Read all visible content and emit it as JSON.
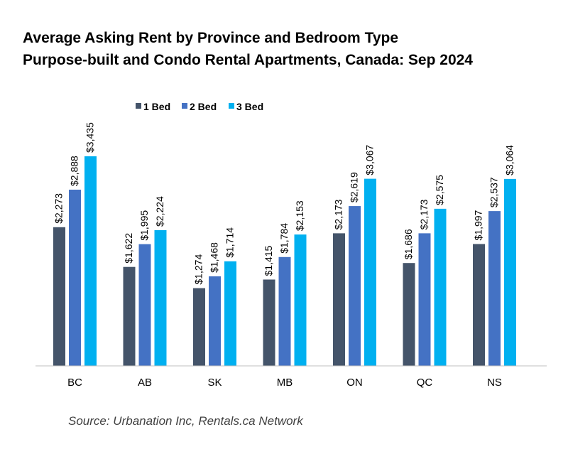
{
  "chart_data": {
    "type": "bar",
    "title": "Average Asking Rent by Province and Bedroom Type",
    "subtitle": "Purpose-built and Condo Rental Apartments, Canada: Sep 2024",
    "source": "Source: Urbanation Inc, Rentals.ca Network",
    "categories": [
      "BC",
      "AB",
      "SK",
      "MB",
      "ON",
      "QC",
      "NS"
    ],
    "series": [
      {
        "name": "1 Bed",
        "color": "#44546a",
        "values": [
          2273,
          1622,
          1274,
          1415,
          2173,
          1686,
          1997
        ]
      },
      {
        "name": "2 Bed",
        "color": "#4472c4",
        "values": [
          2888,
          1995,
          1468,
          1784,
          2619,
          2173,
          2537
        ]
      },
      {
        "name": "3 Bed",
        "color": "#00b0f0",
        "values": [
          3435,
          2224,
          1714,
          2153,
          3067,
          2575,
          3064
        ]
      }
    ],
    "data_labels": [
      [
        "$2,273",
        "$1,622",
        "$1,274",
        "$1,415",
        "$2,173",
        "$1,686",
        "$1,997"
      ],
      [
        "$2,888",
        "$1,995",
        "$1,468",
        "$1,784",
        "$2,619",
        "$2,173",
        "$2,537"
      ],
      [
        "$3,435",
        "$2,224",
        "$1,714",
        "$2,153",
        "$3,067",
        "$2,575",
        "$3,064"
      ]
    ],
    "ylim": [
      0,
      3435
    ],
    "grid": false,
    "legend_position": "top-left"
  }
}
